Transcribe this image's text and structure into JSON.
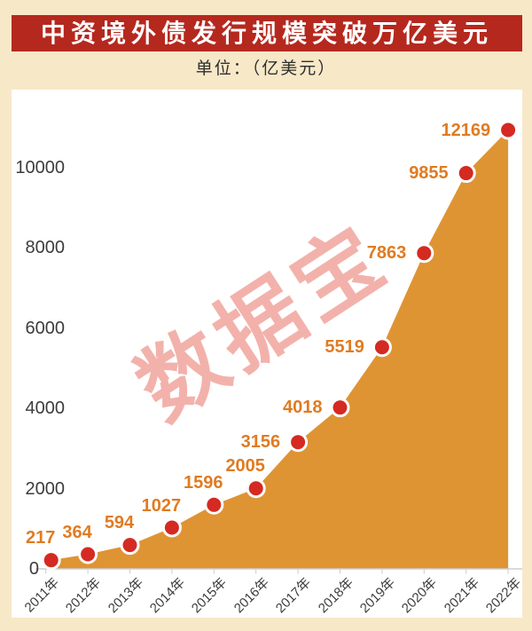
{
  "page": {
    "title": "中资境外债发行规模突破万亿美元",
    "subtitle": "单位：（亿美元）",
    "watermark": "数据宝"
  },
  "colors": {
    "background": "#f7e8c8",
    "banner": "#b5281e",
    "banner_text": "#ffffff",
    "subtitle_text": "#2e2e2e",
    "panel": "#ffffff",
    "area": "#df9434",
    "dot": "#d42a22",
    "dot_ring": "#ffffff",
    "value_label": "#e07b22",
    "axis_text": "#3c3c3c",
    "axis_line": "#cdcdcd",
    "watermark": "#f2b2ab"
  },
  "chart_data": {
    "type": "area",
    "title": "中资境外债发行规模突破万亿美元",
    "unit": "亿美元",
    "categories": [
      "2011年",
      "2012年",
      "2013年",
      "2014年",
      "2015年",
      "2016年",
      "2017年",
      "2018年",
      "2019年",
      "2020年",
      "2021年",
      "2022年"
    ],
    "values": [
      217,
      364,
      594,
      1027,
      1596,
      2005,
      3156,
      4018,
      5519,
      7863,
      9855,
      12169
    ],
    "point_labels": [
      "217",
      "364",
      "594",
      "1027",
      "1596",
      "2005",
      "3156",
      "4018",
      "5519",
      "7863",
      "9855",
      "12169"
    ],
    "xlabel": "",
    "ylabel": "",
    "yticks": [
      0,
      2000,
      4000,
      6000,
      8000,
      10000
    ],
    "ylim": [
      0,
      12169
    ],
    "grid": false,
    "legend": "none",
    "markers": "circle"
  }
}
